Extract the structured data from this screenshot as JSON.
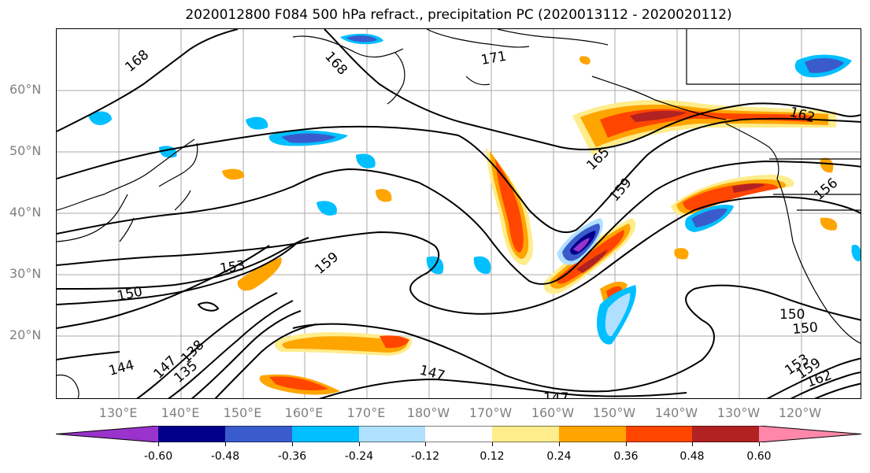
{
  "title": "2020012800 F084 500 hPa refract., precipitation PC (2020013112 - 2020020112)",
  "map": {
    "lat_labels": [
      "60°N",
      "50°N",
      "40°N",
      "30°N",
      "20°N"
    ],
    "lon_labels": [
      "130°E",
      "140°E",
      "150°E",
      "160°E",
      "170°E",
      "180°W",
      "170°W",
      "160°W",
      "150°W",
      "140°W",
      "130°W",
      "120°W"
    ],
    "contour_labels": [
      "168",
      "168",
      "171",
      "165",
      "159",
      "162",
      "156",
      "153",
      "159",
      "150",
      "150",
      "150",
      "147",
      "147",
      "144",
      "147",
      "138",
      "135",
      "153",
      "159",
      "162"
    ],
    "contour_color": "#000000",
    "coastline_color": "#000000"
  },
  "colorbar": {
    "colors": [
      "#9933cc",
      "#00008b",
      "#3a5bcc",
      "#00bfff",
      "#b0e0ff",
      "#ffffff",
      "#ffec8b",
      "#ffa500",
      "#ff4500",
      "#b22222",
      "#ff88aa"
    ],
    "tick_labels": [
      "-0.60",
      "-0.48",
      "-0.36",
      "-0.24",
      "-0.12",
      "0.12",
      "0.24",
      "0.36",
      "0.48",
      "0.60"
    ]
  }
}
